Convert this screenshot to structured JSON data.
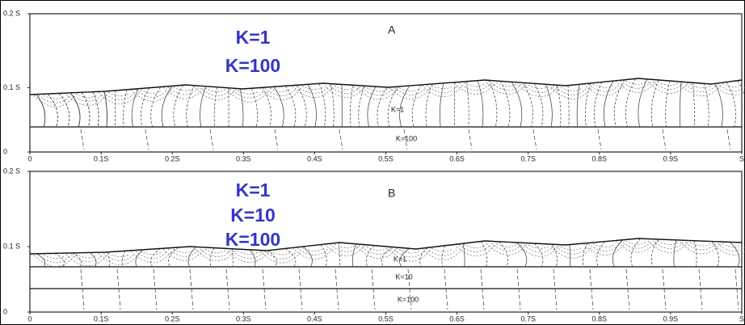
{
  "panels": [
    {
      "label": "A",
      "y_axis": [
        "0.2 S",
        "0.1 S",
        "0"
      ],
      "x_axis": [
        "0",
        "0.1S",
        "0.2S",
        "0.3S",
        "0.4S",
        "0.5S",
        "0.6S",
        "0.7S",
        "0.8S",
        "0.9S",
        "S"
      ],
      "layers": [
        "K=1",
        "K=100"
      ],
      "annotations": [
        "K=1",
        "K=100"
      ]
    },
    {
      "label": "B",
      "y_axis": [
        "0.2 S",
        "0.1 S",
        "0"
      ],
      "x_axis": [
        "0",
        "0.1S",
        "0.2S",
        "0.3S",
        "0.4S",
        "0.5S",
        "0.6S",
        "0.7S",
        "0.8S",
        "0.9S",
        "S"
      ],
      "layers": [
        "K=1",
        "K=10",
        "K=100"
      ],
      "annotations": [
        "K=1",
        "K=10",
        "K=100"
      ]
    }
  ]
}
